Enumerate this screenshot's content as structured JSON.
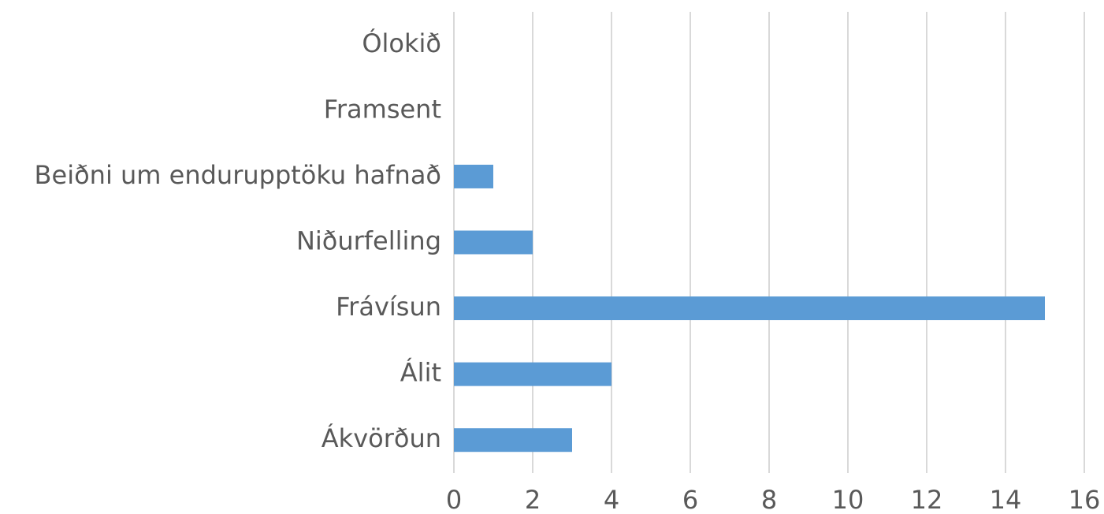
{
  "chart_data": {
    "type": "barh",
    "categories": [
      "Ólokið",
      "Framsent",
      "Beiðni um endurupptöku hafnað",
      "Niðurfelling",
      "Frávísun",
      "Álit",
      "Ákvörðun"
    ],
    "values": [
      0,
      0,
      1,
      2,
      15,
      4,
      3
    ],
    "color": "#5b9bd5",
    "xlim": [
      0,
      16
    ],
    "xticks": [
      0,
      2,
      4,
      6,
      8,
      10,
      12,
      14,
      16
    ],
    "grid": true
  }
}
